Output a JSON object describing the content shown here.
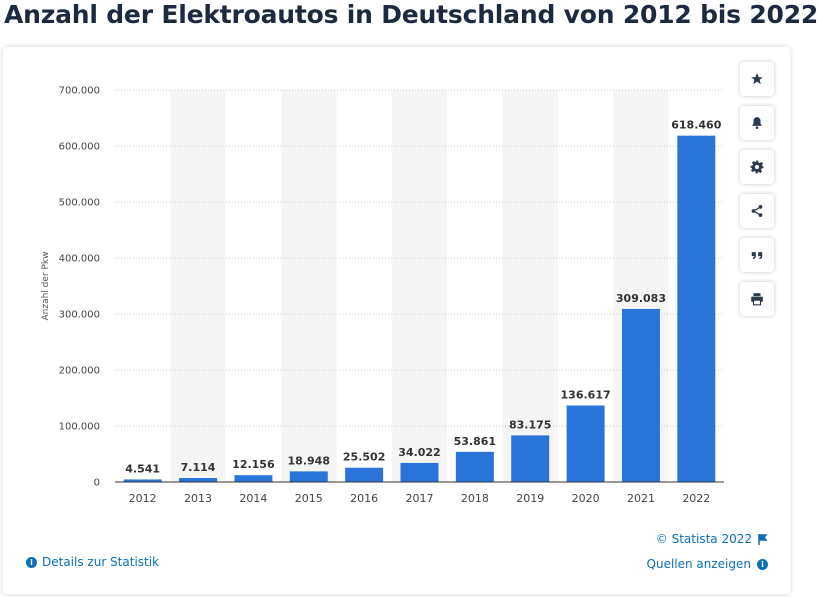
{
  "page": {
    "title": "Anzahl der Elektroautos in Deutschland von 2012 bis 2022"
  },
  "toolbar": {
    "buttons": [
      {
        "name": "favorite-button",
        "icon": "star-icon"
      },
      {
        "name": "notification-button",
        "icon": "bell-icon"
      },
      {
        "name": "settings-button",
        "icon": "gear-icon"
      },
      {
        "name": "share-button",
        "icon": "share-icon"
      },
      {
        "name": "cite-button",
        "icon": "quote-icon"
      },
      {
        "name": "print-button",
        "icon": "printer-icon"
      }
    ]
  },
  "footer": {
    "details_label": "Details zur Statistik",
    "copyright": "© Statista 2022",
    "sources_label": "Quellen anzeigen"
  },
  "colors": {
    "bar": "#2a73d9",
    "title": "#1b2a3f",
    "link": "#0b6fb8",
    "stripe": "#f5f5f5"
  },
  "chart_data": {
    "type": "bar",
    "title": "Anzahl der Elektroautos in Deutschland von 2012 bis 2022",
    "xlabel": "",
    "ylabel": "Anzahl der Pkw",
    "categories": [
      "2012",
      "2013",
      "2014",
      "2015",
      "2016",
      "2017",
      "2018",
      "2019",
      "2020",
      "2021",
      "2022"
    ],
    "values": [
      4541,
      7114,
      12156,
      18948,
      25502,
      34022,
      53861,
      83175,
      136617,
      309083,
      618460
    ],
    "value_labels": [
      "4.541",
      "7.114",
      "12.156",
      "18.948",
      "25.502",
      "34.022",
      "53.861",
      "83.175",
      "136.617",
      "309.083",
      "618.460"
    ],
    "ylim": [
      0,
      700000
    ],
    "yticks": [
      0,
      100000,
      200000,
      300000,
      400000,
      500000,
      600000,
      700000
    ],
    "ytick_labels": [
      "0",
      "100.000",
      "200.000",
      "300.000",
      "400.000",
      "500.000",
      "600.000",
      "700.000"
    ],
    "grid": true,
    "legend": "none"
  }
}
